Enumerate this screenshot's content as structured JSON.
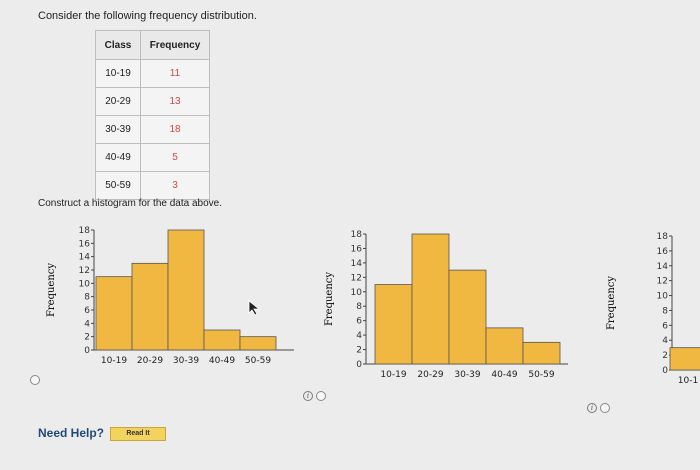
{
  "question": {
    "prompt": "Consider the following frequency distribution.",
    "table": {
      "headers": [
        "Class",
        "Frequency"
      ],
      "rows": [
        {
          "class": "10-19",
          "frequency": "11"
        },
        {
          "class": "20-29",
          "frequency": "13"
        },
        {
          "class": "30-39",
          "frequency": "18"
        },
        {
          "class": "40-49",
          "frequency": "5"
        },
        {
          "class": "50-59",
          "frequency": "3"
        }
      ]
    },
    "instruction": "Construct a histogram for the data above."
  },
  "colors": {
    "bar_fill": "#f0b840",
    "bar_stroke": "#555555"
  },
  "chart_data": [
    {
      "type": "bar",
      "categories": [
        "10-19",
        "20-29",
        "30-39",
        "40-49",
        "50-59"
      ],
      "values": [
        11,
        13,
        18,
        3,
        2
      ],
      "ylabel": "Frequency",
      "yticks": [
        0,
        2,
        4,
        6,
        8,
        10,
        12,
        14,
        16,
        18
      ],
      "ylim": [
        0,
        18
      ]
    },
    {
      "type": "bar",
      "categories": [
        "10-19",
        "20-29",
        "30-39",
        "40-49",
        "50-59"
      ],
      "values": [
        11,
        18,
        13,
        5,
        3
      ],
      "ylabel": "Frequency",
      "yticks": [
        0,
        2,
        4,
        6,
        8,
        10,
        12,
        14,
        16,
        18
      ],
      "ylim": [
        0,
        18
      ]
    },
    {
      "type": "bar",
      "categories": [
        "10-1"
      ],
      "values": [
        3
      ],
      "ylabel": "Frequency",
      "yticks": [
        0,
        2,
        4,
        6,
        8,
        10,
        12,
        14,
        16,
        18
      ],
      "ylim": [
        0,
        18
      ]
    }
  ],
  "footer": {
    "need_help": "Need Help?",
    "read_it": "Read It"
  }
}
